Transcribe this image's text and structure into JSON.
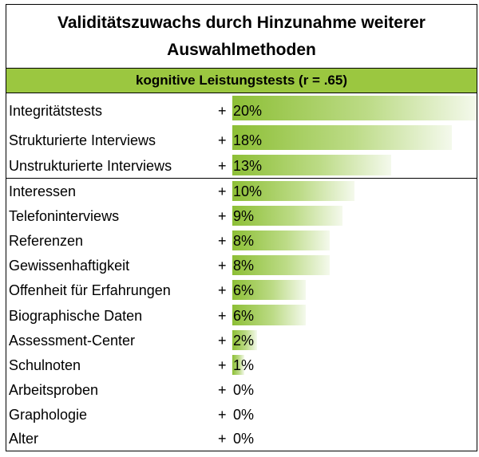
{
  "title_line1": "Validitätszuwachs durch Hinzunahme weiterer",
  "title_line2": "Auswahlmethoden",
  "band": "kognitive Leistungstests (r = .65)",
  "colors": {
    "band": "#9bc740",
    "bar": "#8dbf36"
  },
  "chart_data": {
    "type": "bar",
    "orientation": "horizontal",
    "categories": [
      "Integritätstests",
      "Strukturierte Interviews",
      "Unstrukturierte Interviews",
      "Interessen",
      "Telefoninterviews",
      "Referenzen",
      "Gewissenhaftigkeit",
      "Offenheit für Erfahrungen",
      "Biographische Daten",
      "Assessment-Center",
      "Schulnoten",
      "Arbeitsproben",
      "Graphologie",
      "Alter"
    ],
    "values": [
      20,
      18,
      13,
      10,
      9,
      8,
      8,
      6,
      6,
      2,
      1,
      0,
      0,
      0
    ],
    "labels": [
      "20%",
      "18%",
      "13%",
      "10%",
      "9%",
      "8%",
      "8%",
      "6%",
      "6%",
      "2%",
      "1%",
      "0%",
      "0%",
      "0%"
    ],
    "prefix": "+",
    "xlim": [
      0,
      20
    ],
    "title": "Validitätszuwachs durch Hinzunahme weiterer Auswahlmethoden",
    "subtitle": "kognitive Leistungstests (r = .65)",
    "grid": false,
    "legend": "none"
  }
}
